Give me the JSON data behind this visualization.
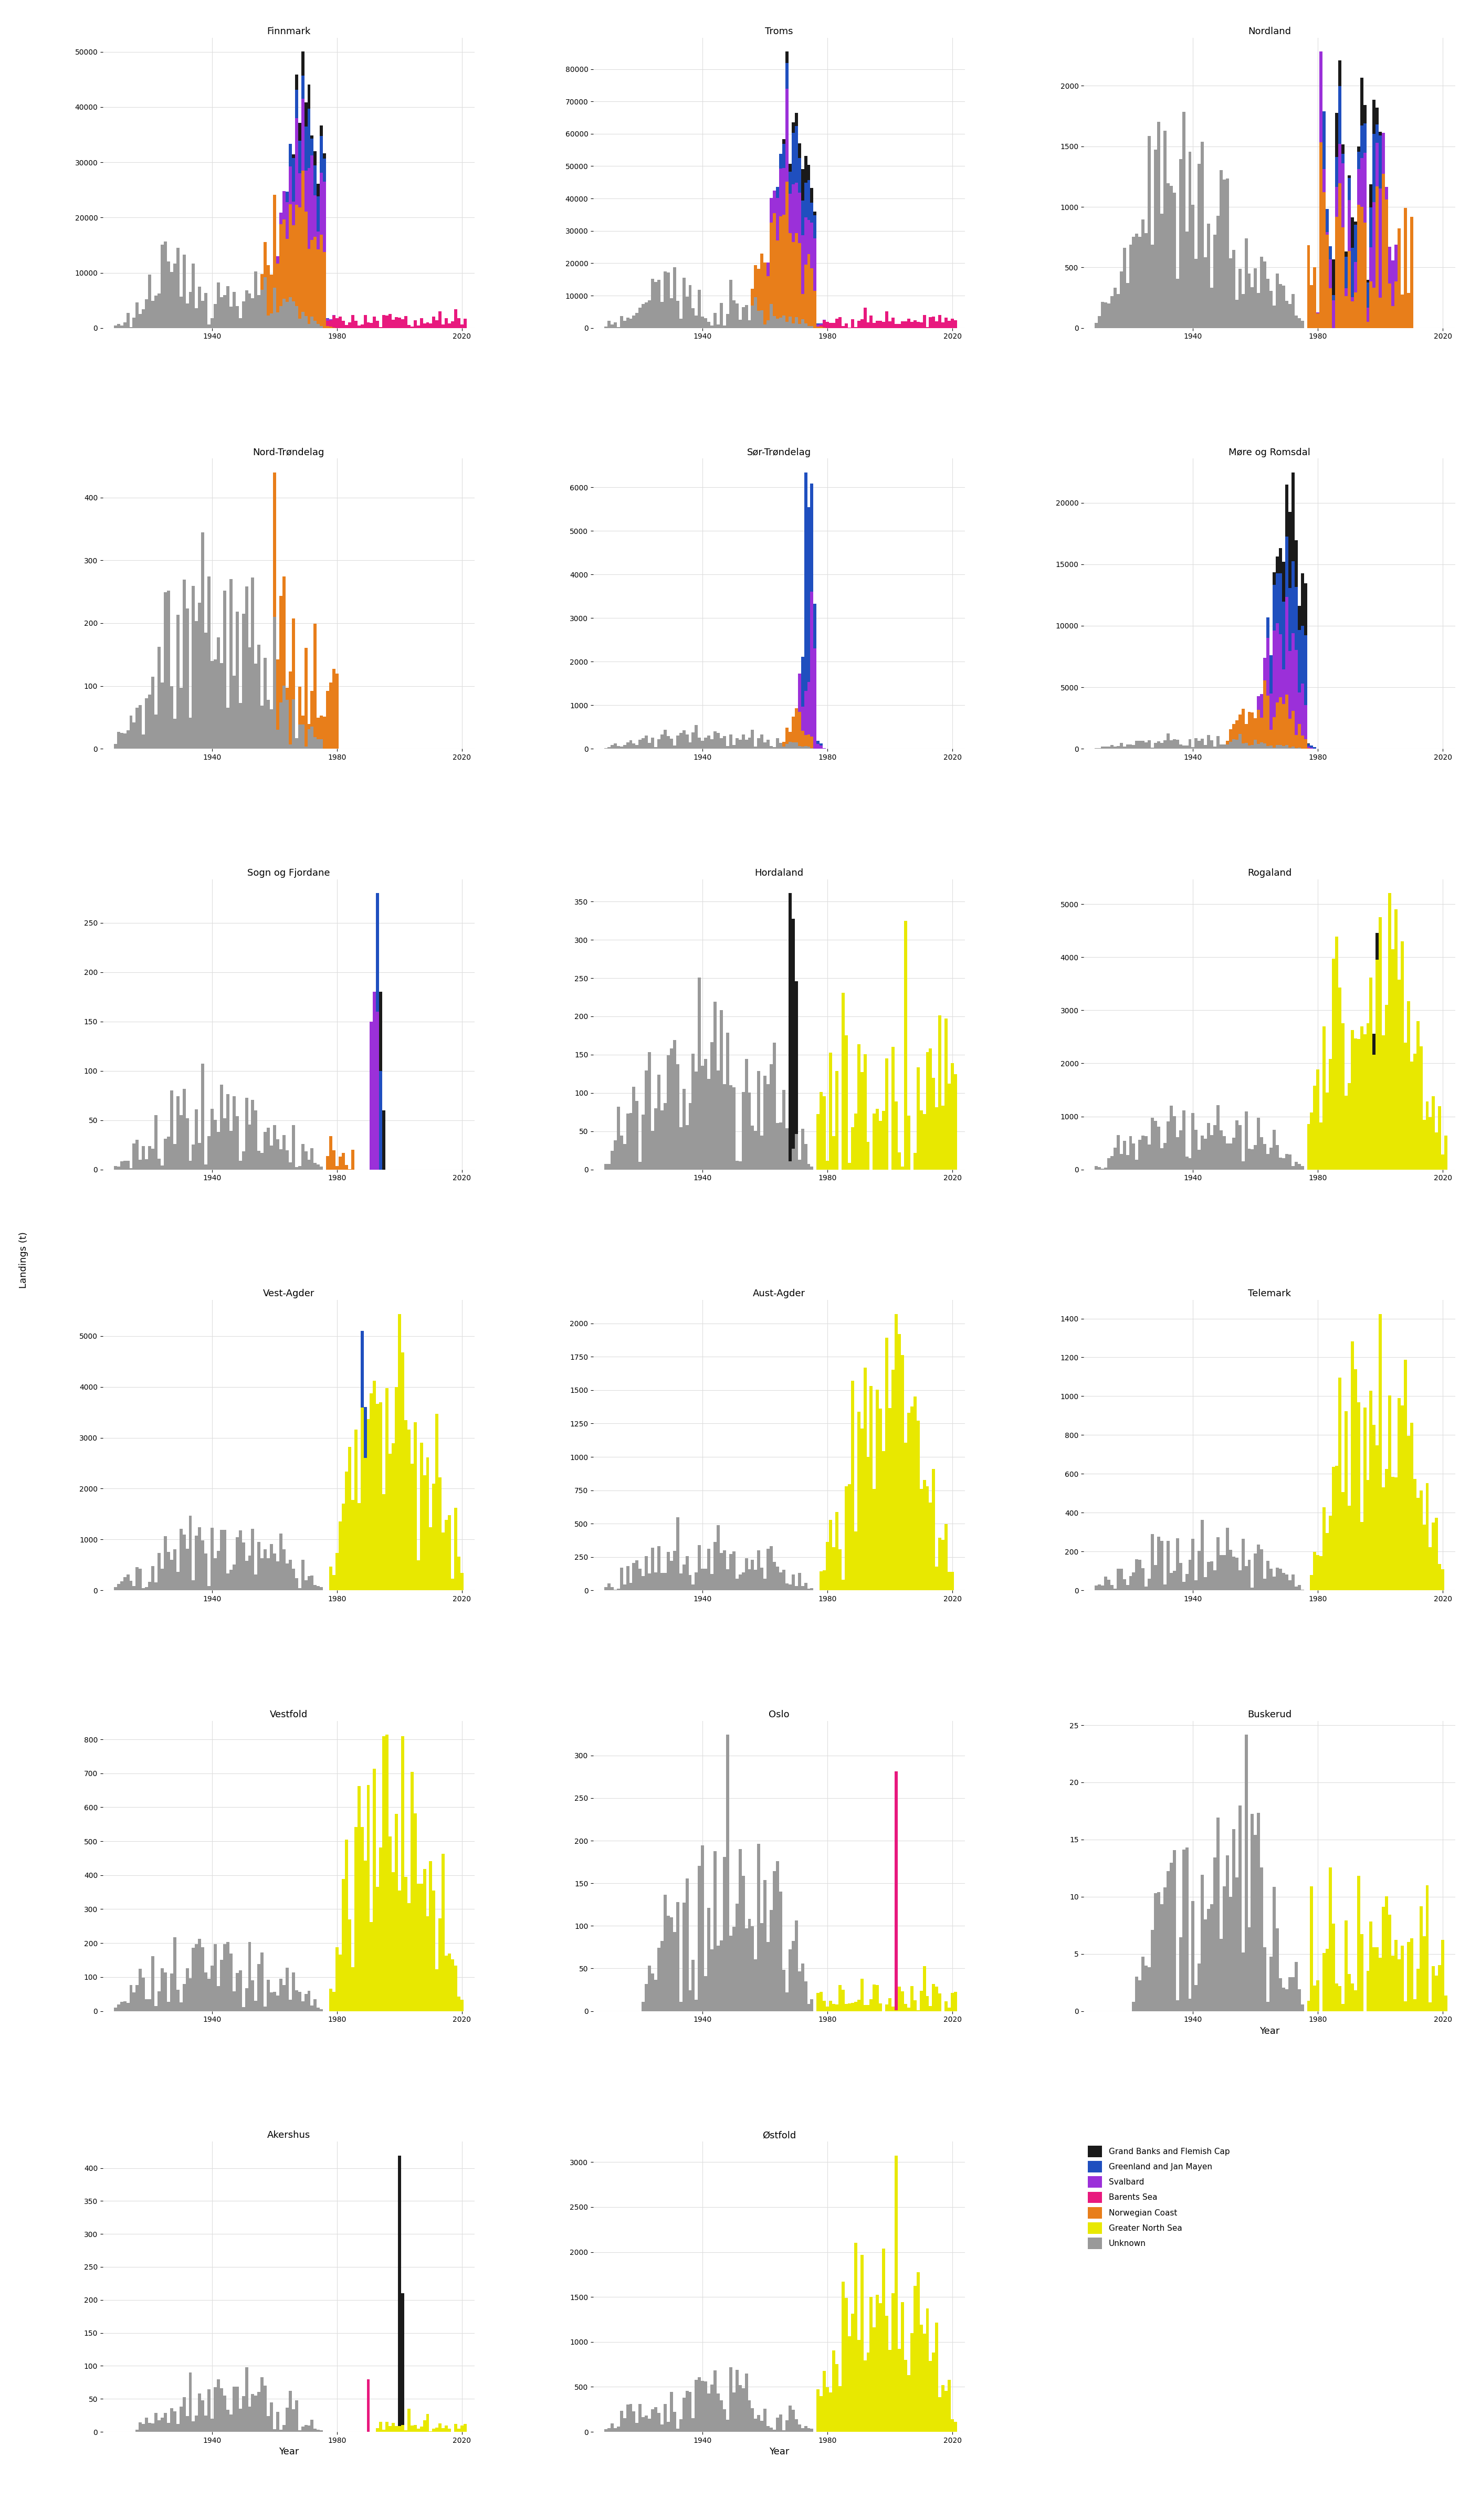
{
  "colors": {
    "Grand Banks and Flemish Cap": "#1a1a1a",
    "Greenland and Jan Mayen": "#1f4fbf",
    "Svalbard": "#9b30d9",
    "Barents Sea": "#e8197e",
    "Norwegian Coast": "#e87e1a",
    "Greater North Sea": "#e8e800",
    "Unknown": "#999999"
  },
  "ylabel": "Landings (t)",
  "xlabel": "Year",
  "background_color": "#ffffff",
  "grid_color": "#dddddd",
  "title_fontsize": 13,
  "axis_fontsize": 10,
  "ylabel_fontsize": 13,
  "xlabel_fontsize": 13,
  "legend_labels": [
    "Grand Banks and Flemish Cap",
    "Greenland and Jan Mayen",
    "Svalbard",
    "Barents Sea",
    "Norwegian Coast",
    "Greater North Sea",
    "Unknown"
  ]
}
